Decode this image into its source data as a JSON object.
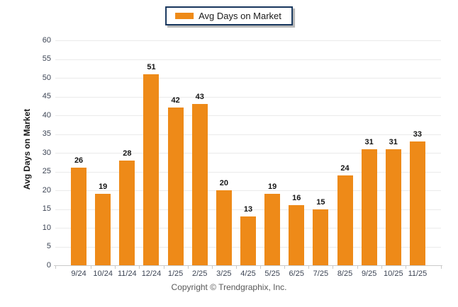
{
  "legend": {
    "label": "Avg Days on Market",
    "swatch_icon": "orange-bar-swatch-icon",
    "swatch_color": "#EE8A18"
  },
  "chart_data": {
    "type": "bar",
    "categories": [
      "9/24",
      "10/24",
      "11/24",
      "12/24",
      "1/25",
      "2/25",
      "3/25",
      "4/25",
      "5/25",
      "6/25",
      "7/25",
      "8/25",
      "9/25",
      "10/25",
      "11/25"
    ],
    "values": [
      26,
      19,
      28,
      51,
      42,
      43,
      20,
      13,
      19,
      16,
      15,
      24,
      31,
      31,
      33
    ],
    "title": "",
    "xlabel": "",
    "ylabel": "Avg Days on Market",
    "ylim": [
      0,
      60
    ],
    "ytick_step": 5,
    "grid": "horizontal",
    "legend_position": "top-center",
    "bar_color": "#EE8A18",
    "gridline_color": "#eaeaea",
    "axis_line_color": "#c9c9c9",
    "value_label_color": "#141414",
    "tick_label_color": "#3c4454"
  },
  "footer": {
    "copyright": "Copyright © Trendgraphix, Inc."
  }
}
